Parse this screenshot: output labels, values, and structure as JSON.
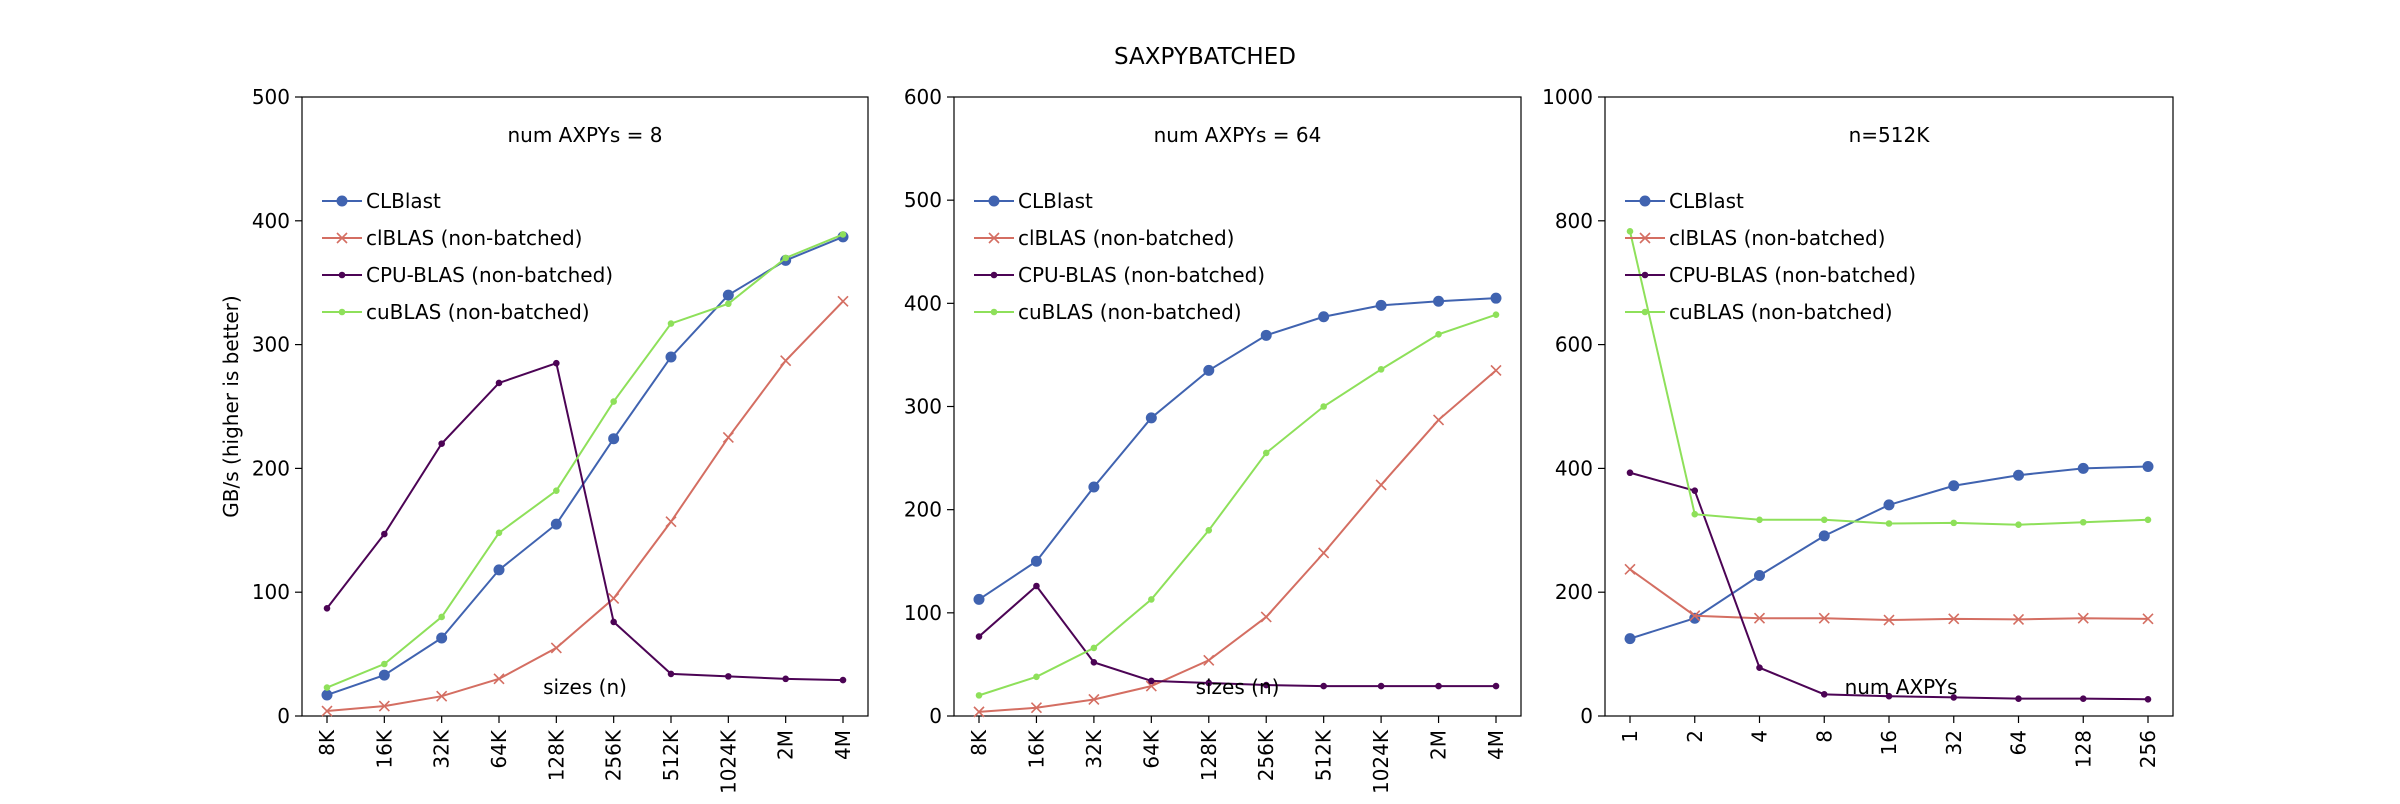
{
  "figure": {
    "title": "SAXPYBATCHED"
  },
  "colors": {
    "CLBlast": "#4063b0",
    "clBLAS (non-batched)": "#d46e62",
    "CPU-BLAS (non-batched)": "#4c0455",
    "cuBLAS (non-batched)": "#8ee05a"
  },
  "chart_data": [
    {
      "type": "line",
      "title": "num AXPYs = 8",
      "xlabel": "sizes (n)",
      "ylabel": "GB/s (higher is better)",
      "categories": [
        "8K",
        "16K",
        "32K",
        "64K",
        "128K",
        "256K",
        "512K",
        "1024K",
        "2M",
        "4M"
      ],
      "ylim": [
        0,
        500
      ],
      "yticks": [
        "0",
        "100",
        "200",
        "300",
        "400",
        "500"
      ],
      "legend_position": "upper-left",
      "series": [
        {
          "name": "CLBlast",
          "marker": "circle",
          "values": [
            17,
            33,
            63,
            118,
            155,
            224,
            290,
            340,
            368,
            387
          ]
        },
        {
          "name": "clBLAS (non-batched)",
          "marker": "x",
          "values": [
            4,
            8,
            16,
            30,
            55,
            95,
            157,
            225,
            287,
            335
          ]
        },
        {
          "name": "CPU-BLAS (non-batched)",
          "marker": "dot",
          "values": [
            87,
            147,
            220,
            269,
            285,
            76,
            34,
            32,
            30,
            29
          ]
        },
        {
          "name": "cuBLAS (non-batched)",
          "marker": "dot",
          "values": [
            23,
            42,
            80,
            148,
            182,
            254,
            317,
            333,
            370,
            389
          ]
        }
      ]
    },
    {
      "type": "line",
      "title": "num AXPYs = 64",
      "xlabel": "sizes (n)",
      "ylabel": "",
      "categories": [
        "8K",
        "16K",
        "32K",
        "64K",
        "128K",
        "256K",
        "512K",
        "1024K",
        "2M",
        "4M"
      ],
      "ylim": [
        0,
        600
      ],
      "yticks": [
        "0",
        "100",
        "200",
        "300",
        "400",
        "500",
        "600"
      ],
      "legend_position": "upper-left",
      "series": [
        {
          "name": "CLBlast",
          "marker": "circle",
          "values": [
            113,
            150,
            222,
            289,
            335,
            369,
            387,
            398,
            402,
            405
          ]
        },
        {
          "name": "clBLAS (non-batched)",
          "marker": "x",
          "values": [
            4,
            8,
            16,
            29,
            54,
            96,
            158,
            224,
            287,
            335
          ]
        },
        {
          "name": "CPU-BLAS (non-batched)",
          "marker": "dot",
          "values": [
            77,
            126,
            52,
            34,
            32,
            30,
            29,
            29,
            29,
            29
          ]
        },
        {
          "name": "cuBLAS (non-batched)",
          "marker": "dot",
          "values": [
            20,
            38,
            66,
            113,
            180,
            255,
            300,
            336,
            370,
            389
          ]
        }
      ]
    },
    {
      "type": "line",
      "title": "n=512K",
      "xlabel": "num AXPYs",
      "ylabel": "",
      "categories": [
        "1",
        "2",
        "4",
        "8",
        "16",
        "32",
        "64",
        "128",
        "256"
      ],
      "ylim": [
        0,
        1000
      ],
      "yticks": [
        "0",
        "200",
        "400",
        "600",
        "800",
        "1000"
      ],
      "legend_position": "upper-left",
      "series": [
        {
          "name": "CLBlast",
          "marker": "circle",
          "values": [
            125,
            158,
            227,
            291,
            341,
            372,
            389,
            400,
            403
          ]
        },
        {
          "name": "clBLAS (non-batched)",
          "marker": "x",
          "values": [
            237,
            162,
            158,
            158,
            155,
            157,
            156,
            158,
            157
          ]
        },
        {
          "name": "CPU-BLAS (non-batched)",
          "marker": "dot",
          "values": [
            393,
            364,
            78,
            35,
            32,
            30,
            28,
            28,
            27
          ]
        },
        {
          "name": "cuBLAS (non-batched)",
          "marker": "dot",
          "values": [
            783,
            326,
            317,
            317,
            311,
            312,
            309,
            313,
            317
          ]
        }
      ]
    }
  ]
}
